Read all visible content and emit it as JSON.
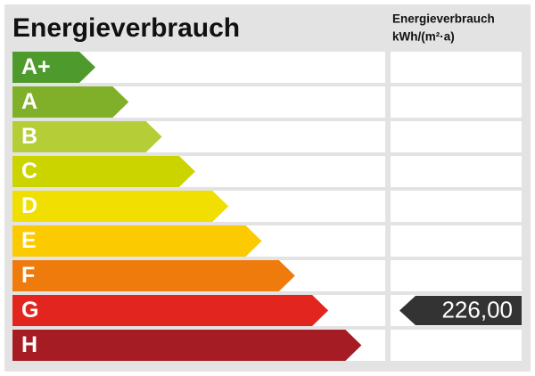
{
  "title": "Energieverbrauch",
  "column_header": [
    "Energieverbrauch",
    "kWh/(m²·a)"
  ],
  "classes": [
    {
      "label": "A+",
      "color": "#4e9a2c"
    },
    {
      "label": "A",
      "color": "#80b02a"
    },
    {
      "label": "B",
      "color": "#b5cd37"
    },
    {
      "label": "C",
      "color": "#ccd400"
    },
    {
      "label": "D",
      "color": "#f0df00"
    },
    {
      "label": "E",
      "color": "#fcca00"
    },
    {
      "label": "F",
      "color": "#ee7b0c"
    },
    {
      "label": "G",
      "color": "#e2261f"
    },
    {
      "label": "H",
      "color": "#a51c24"
    }
  ],
  "indicator": {
    "rating": "G",
    "value": "226,00",
    "color": "#333333"
  }
}
